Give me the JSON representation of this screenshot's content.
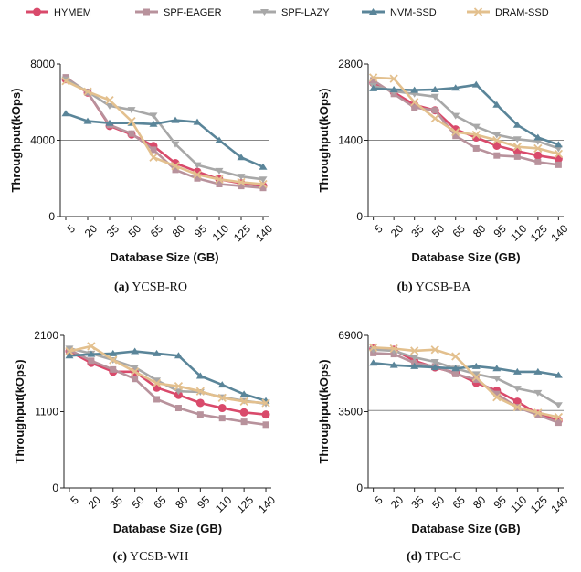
{
  "legend": [
    {
      "name": "HYMEM",
      "color": "#d94a6b",
      "marker": "circle"
    },
    {
      "name": "SPF-EAGER",
      "color": "#b8929c",
      "marker": "square"
    },
    {
      "name": "SPF-LAZY",
      "color": "#a8a8a8",
      "marker": "triangle-down"
    },
    {
      "name": "NVM-SSD",
      "color": "#5a8599",
      "marker": "triangle-up"
    },
    {
      "name": "DRAM-SSD",
      "color": "#e3c08e",
      "marker": "x"
    }
  ],
  "chart_data": [
    {
      "type": "line",
      "caption_letter": "(a)",
      "caption": "YCSB-RO",
      "xlabel": "Database Size (GB)",
      "ylabel": "Throughput(kOps)",
      "categories": [
        "5",
        "20",
        "35",
        "50",
        "65",
        "80",
        "95",
        "110",
        "125",
        "140"
      ],
      "ylim": [
        0,
        8000
      ],
      "yticks": [
        "0",
        "4000",
        "8000"
      ],
      "refline": 4000,
      "series": [
        {
          "name": "HYMEM",
          "values": [
            7200,
            6500,
            4750,
            4300,
            3700,
            2800,
            2350,
            1950,
            1750,
            1600
          ]
        },
        {
          "name": "SPF-EAGER",
          "values": [
            7300,
            6500,
            4800,
            4350,
            3500,
            2450,
            2000,
            1700,
            1600,
            1500
          ]
        },
        {
          "name": "SPF-LAZY",
          "values": [
            7200,
            6550,
            5800,
            5600,
            5300,
            3800,
            2700,
            2400,
            2100,
            1950
          ]
        },
        {
          "name": "NVM-SSD",
          "values": [
            5400,
            5000,
            4900,
            4900,
            4850,
            5050,
            4950,
            4000,
            3100,
            2600
          ]
        },
        {
          "name": "DRAM-SSD",
          "values": [
            7100,
            6550,
            6100,
            5000,
            3100,
            2650,
            2200,
            1950,
            1800,
            1700
          ]
        }
      ]
    },
    {
      "type": "line",
      "caption_letter": "(b)",
      "caption": "YCSB-BA",
      "xlabel": "Database Size (GB)",
      "ylabel": "Throughput(kOps)",
      "categories": [
        "5",
        "20",
        "35",
        "50",
        "65",
        "80",
        "95",
        "110",
        "125",
        "140"
      ],
      "ylim": [
        0,
        2800
      ],
      "yticks": [
        "0",
        "1400",
        "2800"
      ],
      "refline": 1400,
      "series": [
        {
          "name": "HYMEM",
          "values": [
            2450,
            2280,
            2050,
            1950,
            1600,
            1450,
            1300,
            1200,
            1120,
            1060
          ]
        },
        {
          "name": "SPF-EAGER",
          "values": [
            2500,
            2250,
            2000,
            1950,
            1480,
            1250,
            1120,
            1100,
            1000,
            950
          ]
        },
        {
          "name": "SPF-LAZY",
          "values": [
            2400,
            2300,
            2250,
            2200,
            1850,
            1650,
            1500,
            1420,
            1380,
            1250
          ]
        },
        {
          "name": "NVM-SSD",
          "values": [
            2350,
            2330,
            2320,
            2330,
            2360,
            2420,
            2050,
            1680,
            1450,
            1320
          ]
        },
        {
          "name": "DRAM-SSD",
          "values": [
            2550,
            2530,
            2100,
            1800,
            1550,
            1500,
            1400,
            1280,
            1250,
            1150
          ]
        }
      ]
    },
    {
      "type": "line",
      "caption_letter": "(c)",
      "caption": "YCSB-WH",
      "xlabel": "Database Size (GB)",
      "ylabel": "Throughput(kOps)",
      "categories": [
        "5",
        "20",
        "35",
        "50",
        "65",
        "80",
        "95",
        "110",
        "125",
        "140"
      ],
      "ylim": [
        0,
        2100
      ],
      "yticks": [
        "0",
        "1100",
        "2100"
      ],
      "refline": 1100,
      "series": [
        {
          "name": "HYMEM",
          "values": [
            1880,
            1720,
            1600,
            1600,
            1380,
            1280,
            1170,
            1100,
            1040,
            1010
          ]
        },
        {
          "name": "SPF-EAGER",
          "values": [
            1900,
            1750,
            1630,
            1500,
            1220,
            1100,
            1010,
            960,
            910,
            870
          ]
        },
        {
          "name": "SPF-LAZY",
          "values": [
            1920,
            1850,
            1760,
            1660,
            1480,
            1330,
            1320,
            1250,
            1200,
            1160
          ]
        },
        {
          "name": "NVM-SSD",
          "values": [
            1820,
            1840,
            1850,
            1880,
            1850,
            1820,
            1540,
            1420,
            1290,
            1200
          ]
        },
        {
          "name": "DRAM-SSD",
          "values": [
            1880,
            1950,
            1760,
            1600,
            1440,
            1400,
            1330,
            1240,
            1190,
            1170
          ]
        }
      ]
    },
    {
      "type": "line",
      "caption_letter": "(d)",
      "caption": "TPC-C",
      "xlabel": "Database Size (GB)",
      "ylabel": "Throughput(kOps)",
      "categories": [
        "5",
        "20",
        "35",
        "50",
        "65",
        "80",
        "95",
        "110",
        "125",
        "140"
      ],
      "ylim": [
        0,
        6900
      ],
      "yticks": [
        "0",
        "3500",
        "6900"
      ],
      "refline": 3500,
      "series": [
        {
          "name": "HYMEM",
          "values": [
            6300,
            6250,
            5750,
            5450,
            5200,
            4750,
            4400,
            3900,
            3350,
            3050
          ]
        },
        {
          "name": "SPF-EAGER",
          "values": [
            6100,
            6050,
            5650,
            5500,
            5150,
            4900,
            4250,
            3650,
            3300,
            2950
          ]
        },
        {
          "name": "SPF-LAZY",
          "values": [
            6250,
            6200,
            5900,
            5700,
            5400,
            5150,
            4950,
            4500,
            4300,
            3750
          ]
        },
        {
          "name": "NVM-SSD",
          "values": [
            5650,
            5550,
            5500,
            5450,
            5400,
            5500,
            5400,
            5250,
            5250,
            5100
          ]
        },
        {
          "name": "DRAM-SSD",
          "values": [
            6350,
            6300,
            6200,
            6250,
            5950,
            5000,
            4100,
            3650,
            3400,
            3200
          ]
        }
      ]
    }
  ]
}
